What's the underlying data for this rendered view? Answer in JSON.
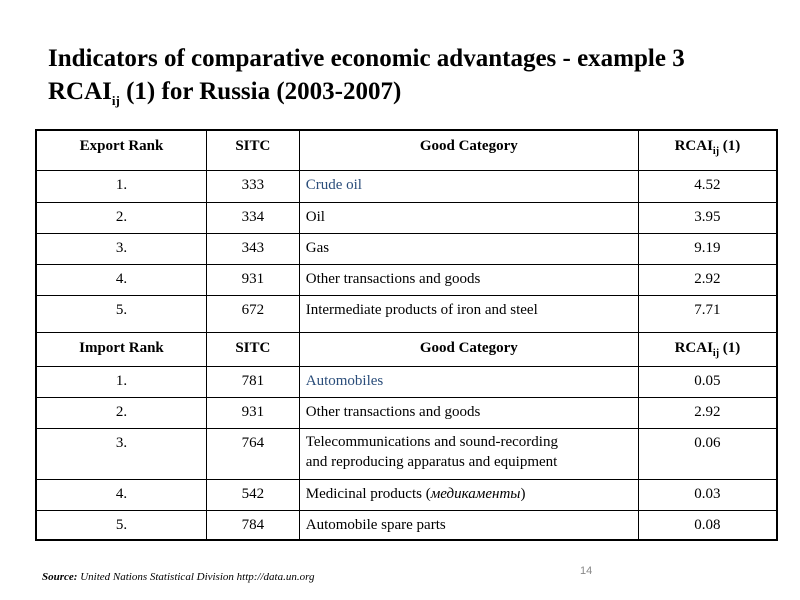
{
  "title": {
    "line1": "Indicators of comparative economic advantages - example 3",
    "line2_main": "RCAI",
    "line2_sub": "ij",
    "line2_rest": " (1) for Russia (2003-2007)"
  },
  "export_header": {
    "rank": "Export Rank",
    "sitc": "SITC",
    "category": "Good Category",
    "rcai_main": "RCAI",
    "rcai_sub": "ij",
    "rcai_rest": " (1)"
  },
  "export_rows": [
    {
      "rank": "1.",
      "sitc": "333",
      "category": "Crude oil",
      "rcai": "4.52"
    },
    {
      "rank": "2.",
      "sitc": "334",
      "category": "Oil",
      "rcai": "3.95"
    },
    {
      "rank": "3.",
      "sitc": "343",
      "category": "Gas",
      "rcai": "9.19"
    },
    {
      "rank": "4.",
      "sitc": "931",
      "category": "Other transactions and goods",
      "rcai": "2.92"
    },
    {
      "rank": "5.",
      "sitc": "672",
      "category": "Intermediate products of iron and steel",
      "rcai": "7.71"
    }
  ],
  "import_header": {
    "rank": "Import Rank",
    "sitc": "SITC",
    "category": "Good Category",
    "rcai_main": "RCAI",
    "rcai_sub": "ij",
    "rcai_rest": " (1)"
  },
  "import_rows": [
    {
      "rank": "1.",
      "sitc": "781",
      "category": "Automobiles",
      "rcai": "0.05"
    },
    {
      "rank": "2.",
      "sitc": "931",
      "category": "Other transactions and goods",
      "rcai": "2.92"
    },
    {
      "rank": "3.",
      "sitc": "764",
      "category_line1": "Telecommunications and sound-recording",
      "category_line2": "and reproducing apparatus and equipment",
      "rcai": "0.06"
    },
    {
      "rank": "4.",
      "sitc": "542",
      "category": "Medicinal products (",
      "category_italic": "медикаменты",
      "category_end": ")",
      "rcai": "0.03"
    },
    {
      "rank": "5.",
      "sitc": "784",
      "category": "Automobile spare parts",
      "rcai": "0.08"
    }
  ],
  "footer": {
    "source_label": "Source:",
    "source_text": " United Nations Statistical Division http://data.un.org",
    "page_number": "14"
  },
  "colors": {
    "link_text": "#2a4d7a"
  }
}
